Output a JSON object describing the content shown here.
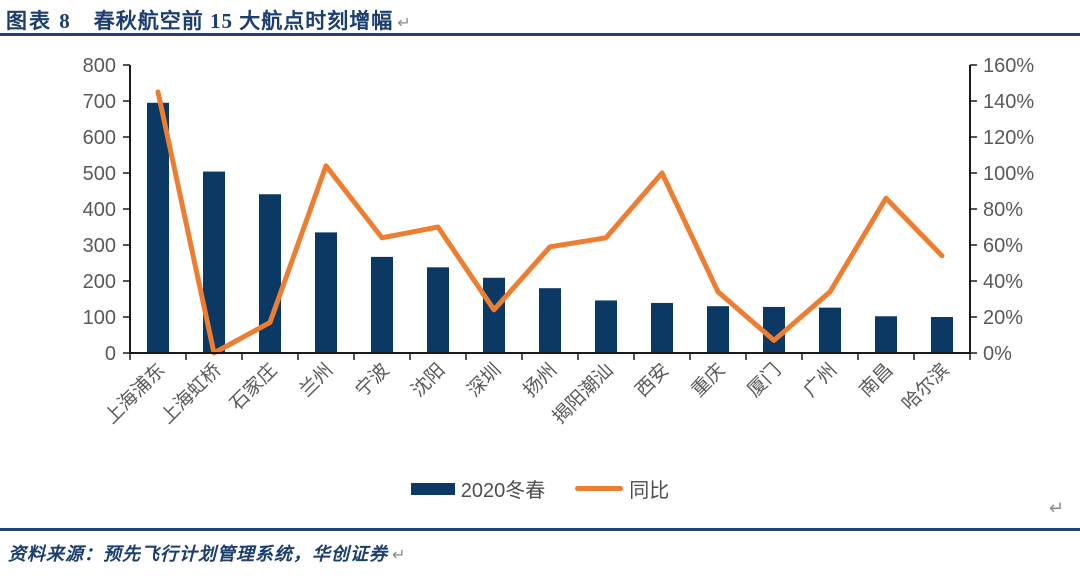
{
  "figure": {
    "label": "图表 8",
    "title": "春秋航空前 15 大航点时刻增幅"
  },
  "marks": {
    "return": "↵"
  },
  "footer": {
    "source": "资料来源：预先飞行计划管理系统，华创证券"
  },
  "chart_data": {
    "type": "bar",
    "combo": "bar+line",
    "title": "",
    "categories": [
      "上海浦东",
      "上海虹桥",
      "石家庄",
      "兰州",
      "宁波",
      "沈阳",
      "深圳",
      "扬州",
      "揭阳潮汕",
      "西安",
      "重庆",
      "厦门",
      "广州",
      "南昌",
      "哈尔滨"
    ],
    "series": [
      {
        "name": "2020冬春",
        "type": "bar",
        "axis": "left",
        "color": "#0C3864",
        "values": [
          695,
          504,
          441,
          335,
          267,
          238,
          209,
          180,
          146,
          139,
          130,
          128,
          126,
          102,
          100
        ]
      },
      {
        "name": "同比",
        "type": "line",
        "axis": "right",
        "color": "#ED7D31",
        "unit": "%",
        "values": [
          145,
          0,
          17,
          104,
          64,
          70,
          24,
          59,
          64,
          100,
          34,
          7,
          34,
          86,
          54
        ]
      }
    ],
    "left_axis": {
      "min": 0,
      "max": 800,
      "step": 100,
      "ticks": [
        "0",
        "100",
        "200",
        "300",
        "400",
        "500",
        "600",
        "700",
        "800"
      ]
    },
    "right_axis": {
      "min": 0,
      "max": 160,
      "step": 20,
      "ticks": [
        "0%",
        "20%",
        "40%",
        "60%",
        "80%",
        "100%",
        "120%",
        "140%",
        "160%"
      ]
    },
    "grid": false,
    "legend_position": "bottom-center",
    "legend": [
      "2020冬春",
      "同比"
    ]
  },
  "style": {
    "bar_color": "#0C3864",
    "line_color": "#ED7D31",
    "axis_color": "#1a1a1a",
    "tick_text_color": "#595959",
    "accent_navy": "#1B3E6F"
  }
}
